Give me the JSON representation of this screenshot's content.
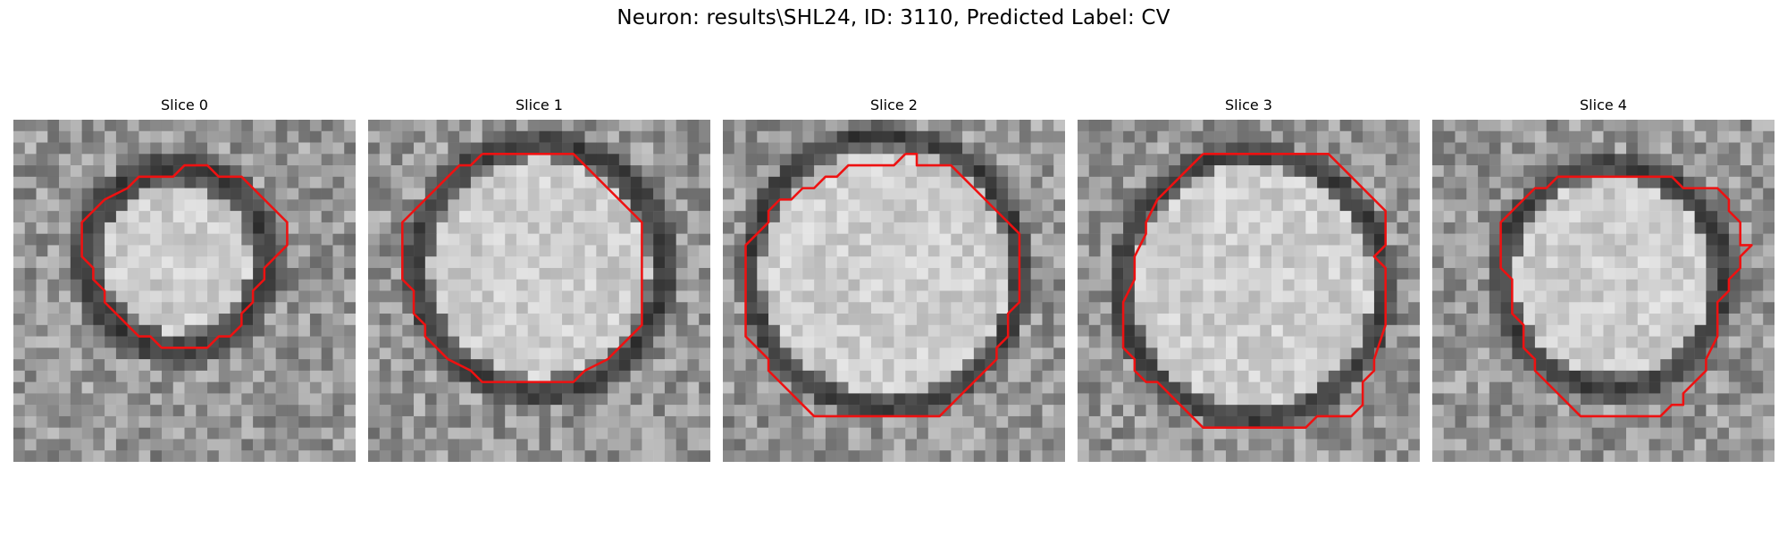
{
  "figure": {
    "title": "Neuron: results\\SHL24, ID: 3110, Predicted Label: CV"
  },
  "panels": [
    {
      "title": "Slice 0",
      "cx": 14.3,
      "cy": 12.2,
      "r": 6.4,
      "ring": 9.6,
      "seed": 11,
      "contour": [
        [
          16,
          4
        ],
        [
          17,
          4
        ],
        [
          18,
          5
        ],
        [
          20,
          5
        ],
        [
          21,
          6
        ],
        [
          22,
          7
        ],
        [
          23,
          8
        ],
        [
          24,
          9
        ],
        [
          24,
          11
        ],
        [
          23,
          12
        ],
        [
          22,
          13
        ],
        [
          22,
          14
        ],
        [
          21,
          15
        ],
        [
          21,
          16
        ],
        [
          20,
          17
        ],
        [
          20,
          18
        ],
        [
          19,
          19
        ],
        [
          18,
          19
        ],
        [
          17,
          20
        ],
        [
          13,
          20
        ],
        [
          12,
          19
        ],
        [
          11,
          19
        ],
        [
          10,
          18
        ],
        [
          9,
          17
        ],
        [
          8,
          16
        ],
        [
          8,
          15
        ],
        [
          7,
          14
        ],
        [
          7,
          13
        ],
        [
          6,
          12
        ],
        [
          6,
          9
        ],
        [
          7,
          8
        ],
        [
          8,
          7
        ],
        [
          10,
          6
        ],
        [
          11,
          5
        ],
        [
          14,
          5
        ],
        [
          15,
          4
        ]
      ]
    },
    {
      "title": "Slice 1",
      "cx": 15.0,
      "cy": 13.0,
      "r": 9.6,
      "ring": 12.2,
      "seed": 23,
      "contour": [
        [
          10,
          3
        ],
        [
          16,
          3
        ],
        [
          17,
          3
        ],
        [
          18,
          3
        ],
        [
          19,
          4
        ],
        [
          20,
          5
        ],
        [
          21,
          6
        ],
        [
          22,
          7
        ],
        [
          23,
          8
        ],
        [
          24,
          9
        ],
        [
          24,
          18
        ],
        [
          23,
          19
        ],
        [
          22,
          20
        ],
        [
          21,
          21
        ],
        [
          19,
          22
        ],
        [
          18,
          23
        ],
        [
          10,
          23
        ],
        [
          9,
          22
        ],
        [
          7,
          21
        ],
        [
          6,
          20
        ],
        [
          5,
          19
        ],
        [
          5,
          18
        ],
        [
          4,
          17
        ],
        [
          4,
          16
        ],
        [
          4,
          15
        ],
        [
          3,
          14
        ],
        [
          3,
          9
        ],
        [
          4,
          8
        ],
        [
          5,
          7
        ],
        [
          6,
          6
        ],
        [
          7,
          5
        ],
        [
          8,
          4
        ],
        [
          9,
          4
        ]
      ]
    },
    {
      "title": "Slice 2",
      "cx": 14.2,
      "cy": 13.3,
      "r": 10.8,
      "ring": 13.0,
      "seed": 37,
      "contour": [
        [
          16,
          3
        ],
        [
          17,
          3
        ],
        [
          17,
          4
        ],
        [
          18,
          4
        ],
        [
          20,
          4
        ],
        [
          21,
          5
        ],
        [
          22,
          6
        ],
        [
          23,
          7
        ],
        [
          24,
          8
        ],
        [
          25,
          9
        ],
        [
          26,
          10
        ],
        [
          26,
          16
        ],
        [
          25,
          17
        ],
        [
          25,
          19
        ],
        [
          24,
          20
        ],
        [
          24,
          21
        ],
        [
          23,
          22
        ],
        [
          22,
          23
        ],
        [
          21,
          24
        ],
        [
          20,
          25
        ],
        [
          19,
          26
        ],
        [
          8,
          26
        ],
        [
          7,
          25
        ],
        [
          6,
          24
        ],
        [
          5,
          23
        ],
        [
          4,
          22
        ],
        [
          4,
          21
        ],
        [
          3,
          20
        ],
        [
          2,
          19
        ],
        [
          2,
          11
        ],
        [
          3,
          10
        ],
        [
          4,
          9
        ],
        [
          4,
          8
        ],
        [
          5,
          7
        ],
        [
          6,
          7
        ],
        [
          7,
          6
        ],
        [
          8,
          6
        ],
        [
          9,
          5
        ],
        [
          10,
          5
        ],
        [
          11,
          4
        ],
        [
          12,
          4
        ],
        [
          13,
          4
        ],
        [
          15,
          4
        ]
      ]
    },
    {
      "title": "Slice 3",
      "cx": 15.3,
      "cy": 14.6,
      "r": 10.5,
      "ring": 12.8,
      "seed": 53,
      "contour": [
        [
          11,
          3
        ],
        [
          12,
          3
        ],
        [
          13,
          3
        ],
        [
          18,
          3
        ],
        [
          22,
          3
        ],
        [
          23,
          4
        ],
        [
          24,
          5
        ],
        [
          25,
          6
        ],
        [
          26,
          7
        ],
        [
          27,
          8
        ],
        [
          27,
          9
        ],
        [
          27,
          10
        ],
        [
          27,
          11
        ],
        [
          26,
          12
        ],
        [
          27,
          13
        ],
        [
          27,
          18
        ],
        [
          26,
          21
        ],
        [
          26,
          22
        ],
        [
          25,
          23
        ],
        [
          25,
          25
        ],
        [
          24,
          26
        ],
        [
          21,
          26
        ],
        [
          20,
          27
        ],
        [
          19,
          27
        ],
        [
          11,
          27
        ],
        [
          10,
          26
        ],
        [
          9,
          25
        ],
        [
          8,
          24
        ],
        [
          7,
          23
        ],
        [
          6,
          23
        ],
        [
          5,
          22
        ],
        [
          5,
          21
        ],
        [
          4,
          20
        ],
        [
          4,
          16
        ],
        [
          5,
          14
        ],
        [
          5,
          12
        ],
        [
          6,
          10
        ],
        [
          6,
          9
        ],
        [
          7,
          7
        ],
        [
          8,
          6
        ],
        [
          9,
          5
        ],
        [
          10,
          4
        ]
      ]
    },
    {
      "title": "Slice 4",
      "cx": 15.8,
      "cy": 13.8,
      "r": 8.6,
      "ring": 11.0,
      "seed": 71,
      "contour": [
        [
          13,
          5
        ],
        [
          21,
          5
        ],
        [
          22,
          6
        ],
        [
          23,
          6
        ],
        [
          25,
          6
        ],
        [
          26,
          7
        ],
        [
          26,
          8
        ],
        [
          27,
          9
        ],
        [
          27,
          10
        ],
        [
          27,
          11
        ],
        [
          28,
          11
        ],
        [
          27,
          12
        ],
        [
          27,
          13
        ],
        [
          26,
          14
        ],
        [
          26,
          15
        ],
        [
          25,
          16
        ],
        [
          25,
          19
        ],
        [
          24,
          21
        ],
        [
          24,
          22
        ],
        [
          23,
          23
        ],
        [
          22,
          24
        ],
        [
          22,
          25
        ],
        [
          21,
          25
        ],
        [
          20,
          26
        ],
        [
          13,
          26
        ],
        [
          12,
          25
        ],
        [
          11,
          24
        ],
        [
          10,
          23
        ],
        [
          9,
          22
        ],
        [
          9,
          21
        ],
        [
          8,
          20
        ],
        [
          8,
          19
        ],
        [
          8,
          18
        ],
        [
          7,
          17
        ],
        [
          7,
          14
        ],
        [
          6,
          13
        ],
        [
          6,
          9
        ],
        [
          7,
          8
        ],
        [
          8,
          7
        ],
        [
          9,
          6
        ],
        [
          10,
          6
        ],
        [
          11,
          5
        ],
        [
          12,
          5
        ]
      ]
    }
  ],
  "colors": {
    "contour": "#ee1111",
    "background": "#ffffff"
  }
}
